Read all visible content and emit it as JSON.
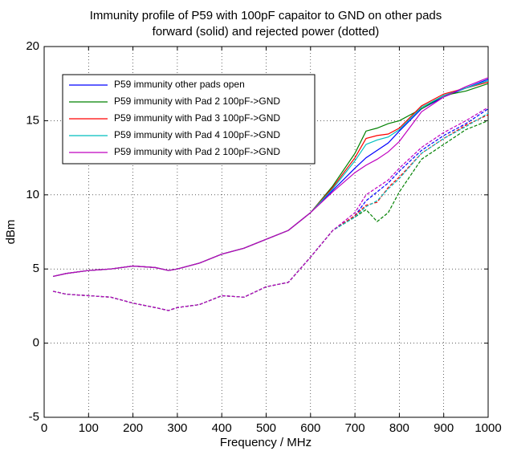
{
  "chart_data": {
    "type": "line",
    "title": "Immunity profile of P59 with 100pF capaitor to GND on other pads",
    "subtitle": "forward (solid) and rejected power (dotted)",
    "x_label": "Frequency / MHz",
    "y_label": "dBm",
    "x": [
      20,
      50,
      100,
      150,
      200,
      250,
      280,
      300,
      350,
      400,
      450,
      500,
      550,
      600,
      650,
      700,
      725,
      750,
      775,
      800,
      850,
      900,
      950,
      1000
    ],
    "series": [
      {
        "name": "P59 immunity other pads open",
        "color": "#0000ff",
        "values": [
          4.5,
          4.7,
          4.9,
          5.0,
          5.2,
          5.1,
          4.9,
          5.0,
          5.4,
          6.0,
          6.4,
          7.0,
          7.6,
          8.8,
          10.3,
          11.8,
          12.5,
          13.0,
          13.5,
          14.3,
          15.8,
          16.6,
          17.2,
          17.8
        ],
        "rejected_values": [
          3.5,
          3.3,
          3.2,
          3.1,
          2.7,
          2.4,
          2.2,
          2.4,
          2.6,
          3.2,
          3.1,
          3.8,
          4.1,
          5.8,
          7.6,
          8.6,
          9.6,
          10.2,
          10.8,
          11.6,
          13.0,
          14.0,
          14.8,
          15.8
        ]
      },
      {
        "name": "P59 immunity with Pad 2 100pF->GND",
        "color": "#008000",
        "values": [
          4.5,
          4.7,
          4.9,
          5.0,
          5.2,
          5.1,
          4.9,
          5.0,
          5.4,
          6.0,
          6.4,
          7.0,
          7.6,
          8.8,
          10.6,
          12.8,
          14.3,
          14.5,
          14.8,
          15.0,
          15.8,
          16.7,
          17.0,
          17.5
        ],
        "rejected_values": [
          3.5,
          3.3,
          3.2,
          3.1,
          2.7,
          2.4,
          2.2,
          2.4,
          2.6,
          3.2,
          3.1,
          3.8,
          4.1,
          5.8,
          7.6,
          8.5,
          9.0,
          8.2,
          8.8,
          10.2,
          12.4,
          13.4,
          14.4,
          15.0
        ]
      },
      {
        "name": "P59 immunity with Pad 3 100pF->GND",
        "color": "#ff0000",
        "values": [
          4.5,
          4.7,
          4.9,
          5.0,
          5.2,
          5.1,
          4.9,
          5.0,
          5.4,
          6.0,
          6.4,
          7.0,
          7.6,
          8.8,
          10.5,
          12.5,
          13.8,
          14.0,
          14.1,
          14.5,
          16.0,
          16.8,
          17.2,
          17.6
        ],
        "rejected_values": [
          3.5,
          3.3,
          3.2,
          3.1,
          2.7,
          2.4,
          2.2,
          2.4,
          2.6,
          3.2,
          3.1,
          3.8,
          4.1,
          5.8,
          7.6,
          8.6,
          9.3,
          9.5,
          10.5,
          11.2,
          12.8,
          13.8,
          14.7,
          15.4
        ]
      },
      {
        "name": "P59 immunity with Pad 4 100pF->GND",
        "color": "#00bfbf",
        "values": [
          4.5,
          4.7,
          4.9,
          5.0,
          5.2,
          5.1,
          4.9,
          5.0,
          5.4,
          6.0,
          6.4,
          7.0,
          7.6,
          8.8,
          10.4,
          12.3,
          13.4,
          13.7,
          13.9,
          14.4,
          15.9,
          16.7,
          17.2,
          17.7
        ],
        "rejected_values": [
          3.5,
          3.3,
          3.2,
          3.1,
          2.7,
          2.4,
          2.2,
          2.4,
          2.6,
          3.2,
          3.1,
          3.8,
          4.1,
          5.8,
          7.6,
          8.5,
          9.2,
          9.6,
          10.4,
          11.1,
          12.8,
          13.8,
          14.6,
          15.5
        ]
      },
      {
        "name": "P59 immunity with Pad 2 100pF->GND",
        "color": "#bf00bf",
        "values": [
          4.5,
          4.7,
          4.9,
          5.0,
          5.2,
          5.1,
          4.9,
          5.0,
          5.4,
          6.0,
          6.4,
          7.0,
          7.6,
          8.8,
          10.2,
          11.5,
          12.0,
          12.4,
          12.9,
          13.6,
          15.6,
          16.6,
          17.3,
          17.9
        ],
        "rejected_values": [
          3.5,
          3.3,
          3.2,
          3.1,
          2.7,
          2.4,
          2.2,
          2.4,
          2.6,
          3.2,
          3.1,
          3.8,
          4.1,
          5.8,
          7.6,
          8.8,
          10.0,
          10.5,
          11.0,
          11.8,
          13.2,
          14.2,
          15.0,
          15.9
        ]
      }
    ],
    "xlim": [
      0,
      1000
    ],
    "xticks": [
      0,
      100,
      200,
      300,
      400,
      500,
      600,
      700,
      800,
      900,
      1000
    ],
    "ylim": [
      -5,
      20
    ],
    "yticks": [
      -5,
      0,
      5,
      10,
      15,
      20
    ],
    "grid": true,
    "legend": "upper left"
  }
}
